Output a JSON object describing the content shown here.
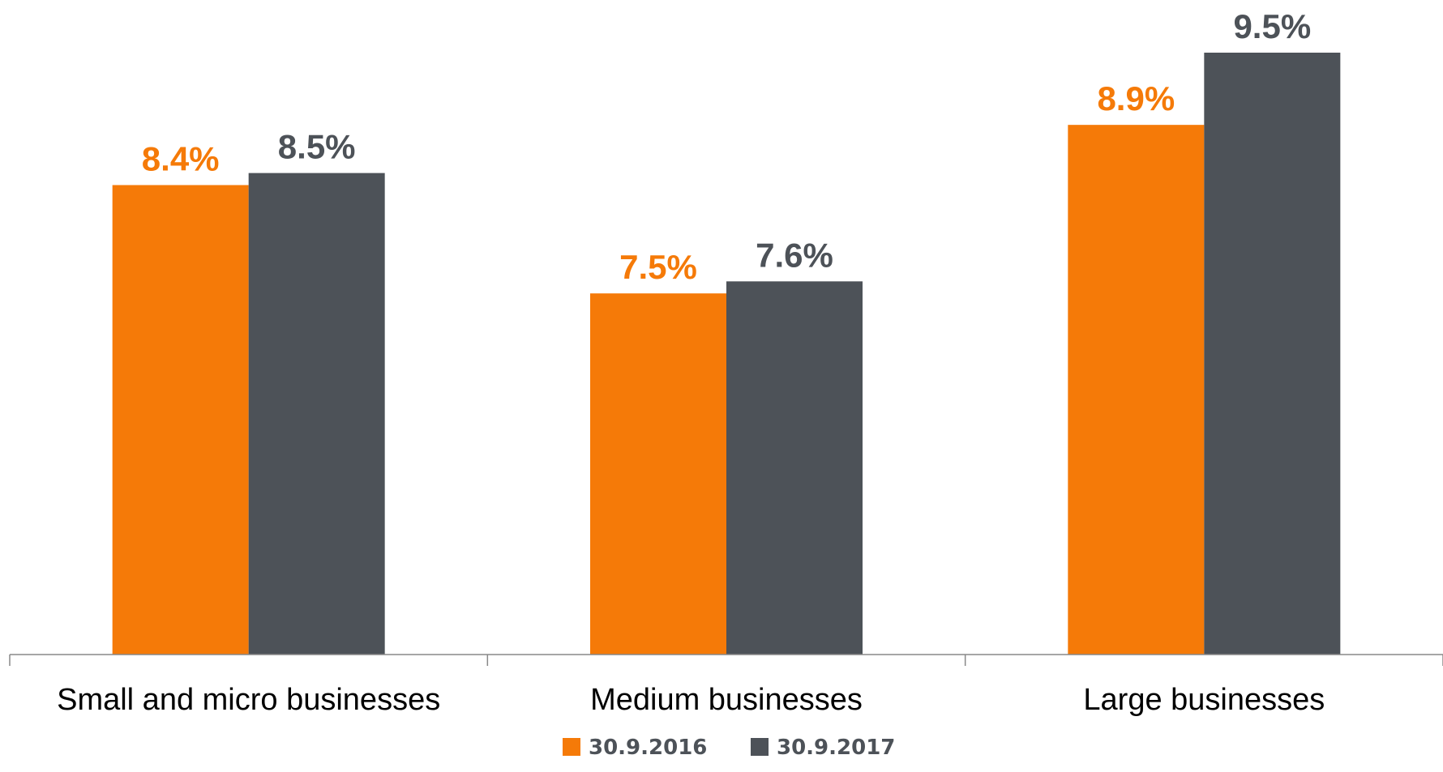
{
  "chart_data": {
    "type": "bar",
    "categories": [
      "Small and micro businesses",
      "Medium businesses",
      "Large businesses"
    ],
    "series": [
      {
        "name": "30.9.2016",
        "values": [
          8.4,
          7.5,
          8.9
        ],
        "labels": [
          "8.4%",
          "7.5%",
          "8.9%"
        ],
        "color": "#f57a08",
        "label_color": "#f57a08"
      },
      {
        "name": "30.9.2017",
        "values": [
          8.5,
          7.6,
          9.5
        ],
        "labels": [
          "8.5%",
          "7.6%",
          "9.5%"
        ],
        "color": "#4d5258",
        "label_color": "#4d5258"
      }
    ],
    "ylim": [
      0,
      9.5
    ],
    "baseline_value": 4.5,
    "grid": false,
    "legend_position": "bottom-center",
    "axis_color": "#888888"
  }
}
